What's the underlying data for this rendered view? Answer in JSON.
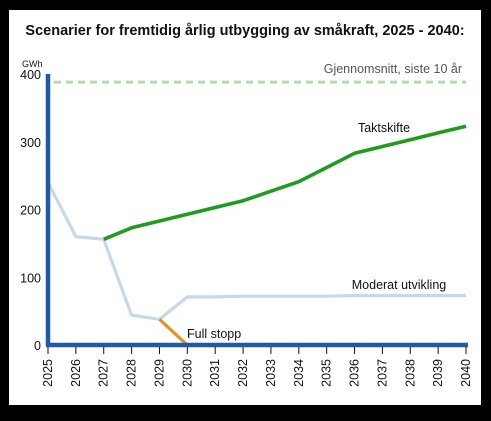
{
  "chart_data": {
    "type": "line",
    "title": "Scenarier for fremtidig årlig utbygging av småkraft, 2025 - 2040:",
    "y_unit": "GWh",
    "xlabel": "",
    "ylabel": "",
    "ylim": [
      0,
      400
    ],
    "yticks": [
      0,
      100,
      200,
      300,
      400
    ],
    "x": [
      "2025",
      "2026",
      "2027",
      "2028",
      "2029",
      "2030",
      "2031",
      "2032",
      "2033",
      "2034",
      "2035",
      "2036",
      "2037",
      "2038",
      "2039",
      "2040"
    ],
    "grid": false,
    "reference_line": {
      "name": "Gjennomsnitt, siste 10 år",
      "value": 388,
      "color": "#b3dba8"
    },
    "series": [
      {
        "name": "Moderat utvikling",
        "color": "#c6d9ea",
        "values": [
          240,
          160,
          156,
          44,
          38,
          71,
          71,
          72,
          72,
          72,
          72,
          73,
          73,
          73,
          73,
          73
        ]
      },
      {
        "name": "Taktskifte",
        "color": "#1f9b1f",
        "values": [
          null,
          null,
          156,
          173,
          183,
          193,
          203,
          213,
          227,
          241,
          262,
          283,
          293,
          303,
          313,
          323
        ]
      },
      {
        "name": "Full stopp",
        "color": "#e8941a",
        "values": [
          null,
          null,
          null,
          null,
          38,
          0,
          null,
          null,
          null,
          null,
          null,
          null,
          null,
          null,
          null,
          null
        ]
      }
    ],
    "axis_color": "#1f5aa8"
  }
}
